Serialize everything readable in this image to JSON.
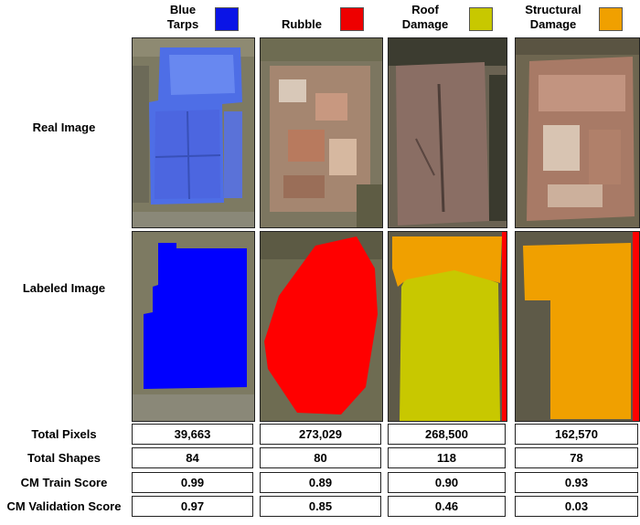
{
  "legend": [
    {
      "label": "Blue\nTarps",
      "color": "#0a14e6",
      "icon": "blue-square"
    },
    {
      "label": "Rubble",
      "color": "#ee0000",
      "icon": "red-square"
    },
    {
      "label": "Roof\nDamage",
      "color": "#c8c800",
      "icon": "yellow-square"
    },
    {
      "label": "Structural\nDamage",
      "color": "#f0a000",
      "icon": "orange-square"
    }
  ],
  "row_labels": {
    "real": "Real Image",
    "labeled": "Labeled Image"
  },
  "stats": {
    "total_pixels": {
      "label": "Total Pixels",
      "values": [
        "39,663",
        "273,029",
        "268,500",
        "162,570"
      ]
    },
    "total_shapes": {
      "label": "Total Shapes",
      "values": [
        "84",
        "80",
        "118",
        "78"
      ]
    },
    "cm_train": {
      "label": "CM Train Score",
      "values": [
        "0.99",
        "0.89",
        "0.90",
        "0.93"
      ]
    },
    "cm_validation": {
      "label": "CM Validation Score",
      "values": [
        "0.97",
        "0.85",
        "0.46",
        "0.03"
      ]
    }
  }
}
